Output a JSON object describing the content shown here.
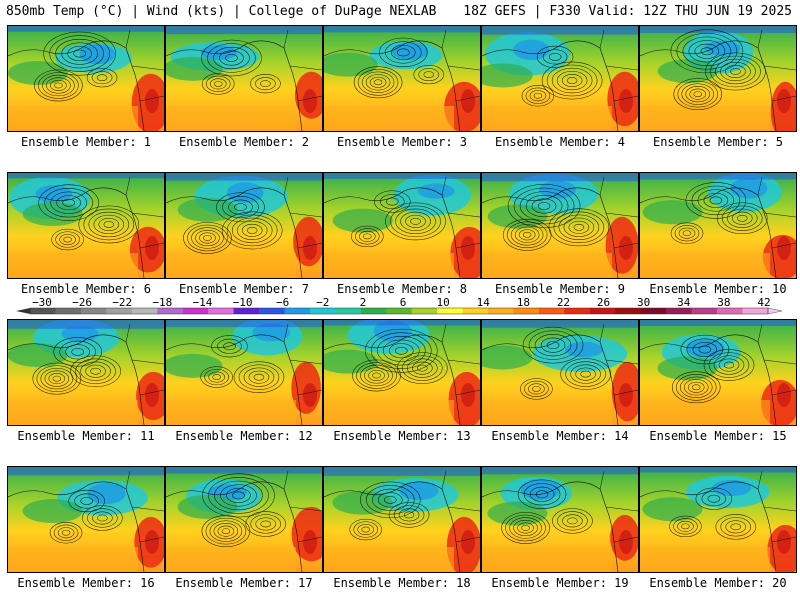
{
  "header": {
    "title_left": "850mb Temp (°C) | Wind (kts) | College of DuPage NEXLAB",
    "title_right": "18Z GEFS | F330 Valid: 12Z THU JUN 19 2025"
  },
  "members": [
    {
      "label": "Ensemble Member: 1"
    },
    {
      "label": "Ensemble Member: 2"
    },
    {
      "label": "Ensemble Member: 3"
    },
    {
      "label": "Ensemble Member: 4"
    },
    {
      "label": "Ensemble Member: 5"
    },
    {
      "label": "Ensemble Member: 6"
    },
    {
      "label": "Ensemble Member: 7"
    },
    {
      "label": "Ensemble Member: 8"
    },
    {
      "label": "Ensemble Member: 9"
    },
    {
      "label": "Ensemble Member: 10"
    },
    {
      "label": "Ensemble Member: 11"
    },
    {
      "label": "Ensemble Member: 12"
    },
    {
      "label": "Ensemble Member: 13"
    },
    {
      "label": "Ensemble Member: 14"
    },
    {
      "label": "Ensemble Member: 15"
    },
    {
      "label": "Ensemble Member: 16"
    },
    {
      "label": "Ensemble Member: 17"
    },
    {
      "label": "Ensemble Member: 18"
    },
    {
      "label": "Ensemble Member: 19"
    },
    {
      "label": "Ensemble Member: 20"
    }
  ],
  "colorbar": {
    "tick_labels": [
      "−30",
      "−26",
      "−22",
      "−18",
      "−14",
      "−10",
      "−6",
      "−2",
      "2",
      "6",
      "10",
      "14",
      "18",
      "22",
      "26",
      "30",
      "34",
      "38",
      "42"
    ],
    "colors": [
      "#555555",
      "#6e6e6e",
      "#878787",
      "#a0a0a0",
      "#b8b8b8",
      "#b36bd1",
      "#cc33cc",
      "#e070e0",
      "#6020d8",
      "#2a55e6",
      "#1e9ae6",
      "#22c8d8",
      "#26c9a0",
      "#2fae4e",
      "#5cb82d",
      "#a6d32a",
      "#ffff33",
      "#ffd21e",
      "#ffb01c",
      "#ff8a14",
      "#ff5a14",
      "#ec2a14",
      "#c81414",
      "#9e0c0c",
      "#7d0a28",
      "#9a1c5a",
      "#bd3c8c",
      "#e06ab8",
      "#f4a6dc"
    ]
  }
}
